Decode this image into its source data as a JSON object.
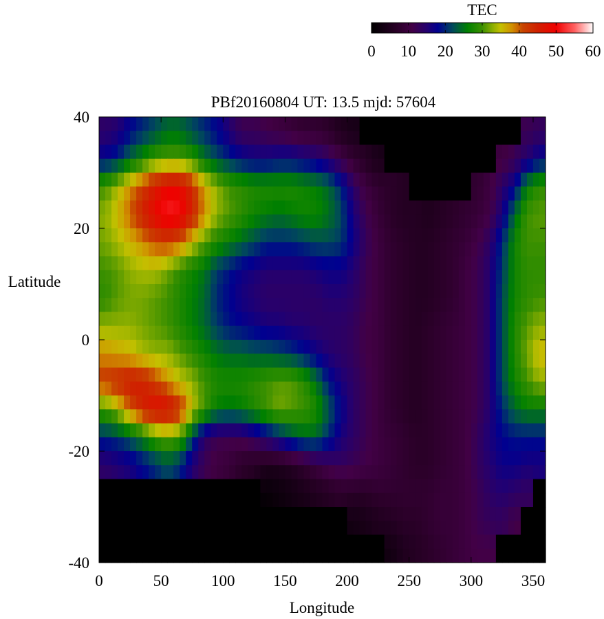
{
  "chart_data": {
    "type": "heatmap",
    "title": "PBf20160804  UT: 13.5  mjd: 57604",
    "xlabel": "Longitude",
    "ylabel": "Latitude",
    "xlim": [
      0,
      360
    ],
    "ylim": [
      -40,
      40
    ],
    "xticks": [
      "0",
      "50",
      "100",
      "150",
      "200",
      "250",
      "300",
      "350"
    ],
    "yticks": [
      "40",
      "20",
      "0",
      "-20",
      "-40"
    ],
    "colorbar": {
      "label": "TEC",
      "range": [
        0,
        60
      ],
      "ticks": [
        "0",
        "10",
        "20",
        "30",
        "40",
        "50",
        "60"
      ],
      "colormap": [
        [
          0,
          "#000000"
        ],
        [
          7,
          "#2a0028"
        ],
        [
          11,
          "#420046"
        ],
        [
          15,
          "#240070"
        ],
        [
          18,
          "#000090"
        ],
        [
          22,
          "#004a5a"
        ],
        [
          26,
          "#008000"
        ],
        [
          30,
          "#3c9000"
        ],
        [
          33,
          "#90b000"
        ],
        [
          35,
          "#c4c000"
        ],
        [
          38,
          "#d09000"
        ],
        [
          41,
          "#c84400"
        ],
        [
          45,
          "#d02000"
        ],
        [
          50,
          "#f00000"
        ],
        [
          55,
          "#ff6060"
        ],
        [
          60,
          "#ffffff"
        ]
      ]
    },
    "lon_centers": [
      5,
      15,
      25,
      35,
      45,
      55,
      65,
      75,
      85,
      95,
      105,
      115,
      125,
      135,
      145,
      155,
      165,
      175,
      185,
      195,
      205,
      215,
      225,
      235,
      245,
      255,
      265,
      275,
      285,
      295,
      305,
      315,
      325,
      335,
      345,
      355
    ],
    "lat_centers": [
      37.5,
      32.5,
      27.5,
      22.5,
      17.5,
      12.5,
      7.5,
      2.5,
      -2.5,
      -7.5,
      -12.5,
      -17.5,
      -22.5,
      -27.5,
      -32.5,
      -37.5
    ],
    "values": [
      [
        14,
        15,
        18,
        20,
        22,
        24,
        24,
        22,
        20,
        18,
        15,
        12,
        12,
        11,
        10,
        9,
        8,
        8,
        7,
        5,
        4,
        0,
        0,
        0,
        0,
        0,
        0,
        0,
        0,
        0,
        0,
        0,
        0,
        0,
        12,
        13
      ],
      [
        18,
        20,
        24,
        27,
        30,
        31,
        31,
        29,
        25,
        22,
        20,
        18,
        17,
        17,
        18,
        18,
        17,
        16,
        14,
        11,
        8,
        6,
        4,
        0,
        0,
        0,
        0,
        0,
        0,
        0,
        0,
        0,
        10,
        12,
        15,
        18
      ],
      [
        30,
        34,
        38,
        42,
        46,
        49,
        49,
        44,
        37,
        33,
        30,
        29,
        28,
        28,
        28,
        28,
        27,
        26,
        24,
        20,
        14,
        10,
        8,
        7,
        6,
        0,
        0,
        0,
        0,
        0,
        8,
        10,
        14,
        18,
        26,
        29
      ],
      [
        33,
        36,
        40,
        45,
        49,
        52,
        51,
        45,
        38,
        33,
        31,
        29,
        27,
        26,
        25,
        26,
        27,
        27,
        25,
        22,
        16,
        12,
        9,
        7,
        6,
        6,
        5,
        6,
        7,
        8,
        9,
        11,
        16,
        24,
        30,
        31
      ],
      [
        32,
        34,
        36,
        38,
        41,
        42,
        40,
        35,
        31,
        28,
        26,
        24,
        22,
        20,
        20,
        20,
        21,
        22,
        22,
        21,
        17,
        13,
        10,
        8,
        7,
        6,
        6,
        7,
        8,
        9,
        11,
        14,
        20,
        27,
        30,
        30
      ],
      [
        30,
        31,
        33,
        34,
        34,
        32,
        29,
        27,
        25,
        21,
        19,
        17,
        16,
        15,
        15,
        15,
        15,
        16,
        17,
        17,
        15,
        12,
        10,
        8,
        7,
        6,
        6,
        7,
        8,
        10,
        12,
        15,
        21,
        27,
        29,
        29
      ],
      [
        29,
        31,
        32,
        32,
        31,
        30,
        28,
        26,
        24,
        20,
        18,
        16,
        15,
        14,
        14,
        14,
        14,
        14,
        15,
        15,
        14,
        12,
        10,
        8,
        7,
        6,
        6,
        7,
        8,
        10,
        12,
        15,
        22,
        27,
        29,
        30
      ],
      [
        33,
        33,
        33,
        32,
        31,
        30,
        28,
        26,
        24,
        21,
        19,
        18,
        17,
        16,
        16,
        15,
        15,
        14,
        14,
        14,
        13,
        11,
        10,
        8,
        7,
        6,
        7,
        8,
        9,
        10,
        12,
        15,
        22,
        28,
        31,
        33
      ],
      [
        38,
        37,
        36,
        34,
        33,
        33,
        31,
        29,
        27,
        25,
        24,
        24,
        23,
        23,
        22,
        21,
        19,
        17,
        15,
        14,
        13,
        11,
        10,
        8,
        7,
        6,
        7,
        8,
        9,
        10,
        12,
        15,
        22,
        28,
        32,
        36
      ],
      [
        42,
        44,
        46,
        45,
        42,
        38,
        35,
        33,
        30,
        28,
        28,
        28,
        29,
        30,
        31,
        31,
        29,
        25,
        19,
        16,
        14,
        12,
        10,
        8,
        7,
        6,
        7,
        8,
        9,
        10,
        12,
        15,
        22,
        27,
        30,
        33
      ],
      [
        30,
        34,
        40,
        45,
        48,
        48,
        44,
        35,
        30,
        26,
        25,
        26,
        28,
        30,
        32,
        31,
        30,
        28,
        23,
        18,
        14,
        12,
        10,
        8,
        7,
        6,
        7,
        8,
        9,
        10,
        12,
        15,
        20,
        24,
        26,
        26
      ],
      [
        20,
        21,
        23,
        26,
        30,
        32,
        30,
        22,
        14,
        12,
        12,
        12,
        14,
        16,
        19,
        22,
        24,
        24,
        20,
        16,
        14,
        12,
        10,
        9,
        8,
        7,
        7,
        8,
        9,
        10,
        13,
        16,
        18,
        19,
        19,
        19
      ],
      [
        14,
        15,
        16,
        18,
        20,
        22,
        20,
        15,
        12,
        10,
        9,
        7,
        6,
        5,
        5,
        6,
        8,
        10,
        12,
        13,
        12,
        11,
        10,
        9,
        8,
        7,
        7,
        8,
        9,
        10,
        13,
        15,
        17,
        17,
        16,
        16
      ],
      [
        0,
        0,
        0,
        0,
        0,
        0,
        0,
        0,
        0,
        0,
        0,
        0,
        0,
        1,
        2,
        3,
        4,
        5,
        6,
        7,
        7,
        7,
        8,
        8,
        8,
        8,
        8,
        9,
        9,
        10,
        12,
        14,
        15,
        14,
        13,
        0
      ],
      [
        0,
        0,
        0,
        0,
        0,
        0,
        0,
        0,
        0,
        0,
        0,
        0,
        0,
        0,
        0,
        0,
        0,
        0,
        0,
        0,
        3,
        4,
        5,
        6,
        7,
        7,
        8,
        9,
        9,
        10,
        12,
        13,
        13,
        11,
        0,
        0
      ],
      [
        0,
        0,
        0,
        0,
        0,
        0,
        0,
        0,
        0,
        0,
        0,
        0,
        0,
        0,
        0,
        0,
        0,
        0,
        0,
        0,
        0,
        0,
        0,
        3,
        5,
        6,
        7,
        8,
        9,
        10,
        11,
        11,
        0,
        0,
        0,
        0
      ]
    ]
  }
}
